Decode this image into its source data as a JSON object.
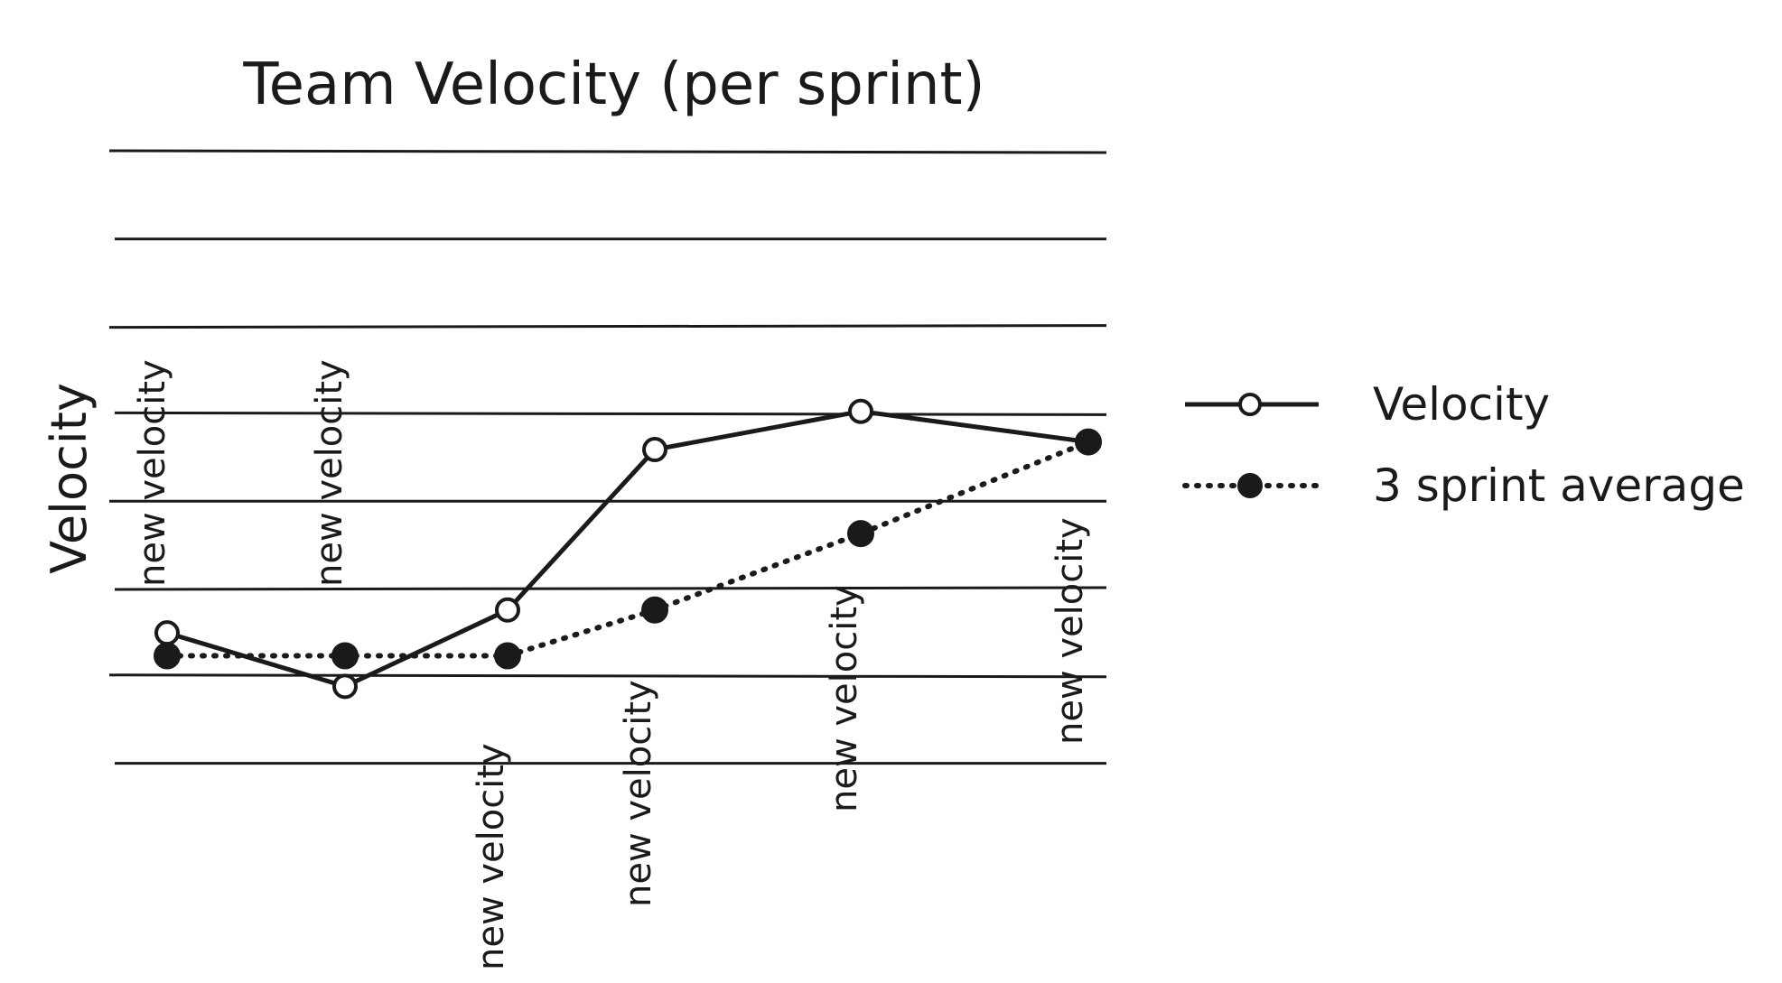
{
  "chart_data": {
    "type": "line",
    "title": "Team Velocity (per sprint)",
    "xlabel": "",
    "ylabel": "Velocity",
    "grid": true,
    "gridline_count": 8,
    "ylim": [
      0,
      8
    ],
    "x": [
      1,
      2,
      3,
      4,
      5,
      6
    ],
    "series": [
      {
        "name": "Velocity",
        "marker": "open-circle",
        "line_style": "solid",
        "values": [
          1.7,
          1.0,
          2.0,
          4.1,
          4.6,
          4.2
        ]
      },
      {
        "name": "3 sprint average",
        "marker": "filled-circle",
        "line_style": "dotted",
        "values": [
          1.4,
          1.4,
          1.4,
          2.0,
          3.0,
          4.2
        ]
      }
    ],
    "annotations": [
      {
        "text": "new velocity",
        "x": 1,
        "position": "above"
      },
      {
        "text": "new velocity",
        "x": 2,
        "position": "above"
      },
      {
        "text": "new velocity",
        "x": 3,
        "position": "below"
      },
      {
        "text": "new velocity",
        "x": 4,
        "position": "below"
      },
      {
        "text": "new velocity",
        "x": 5,
        "position": "below"
      },
      {
        "text": "new velocity",
        "x": 6,
        "position": "below"
      }
    ],
    "legend_position": "right"
  }
}
